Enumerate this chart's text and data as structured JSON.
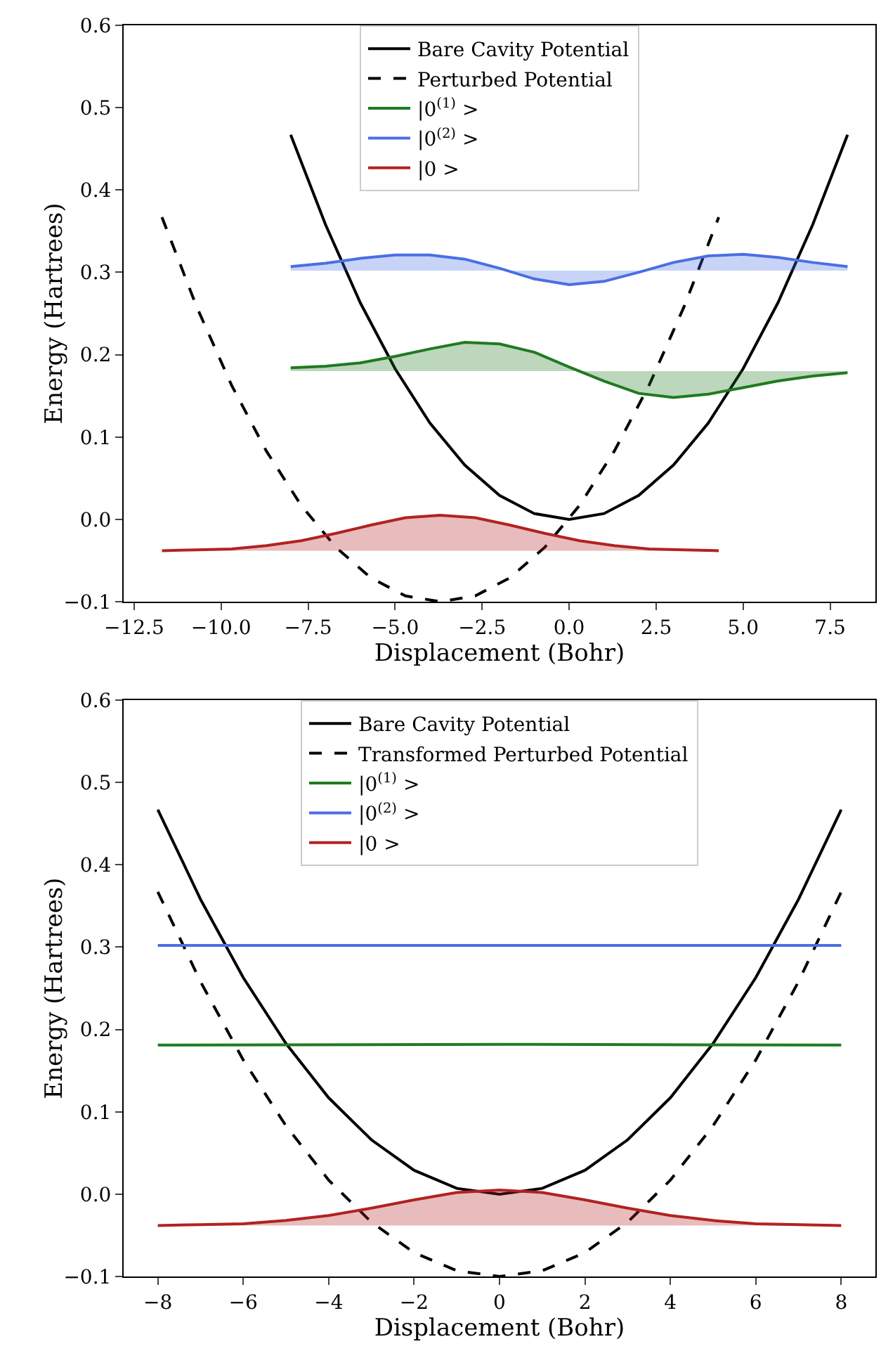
{
  "chart_data": [
    {
      "type": "line",
      "xlabel": "Displacement (Bohr)",
      "ylabel": "Energy (Hartrees)",
      "xlim": [
        -12.8,
        8.8
      ],
      "ylim": [
        -0.1,
        0.6
      ],
      "xticks": [
        {
          "value": -12.5,
          "label": "−12.5"
        },
        {
          "value": -10,
          "label": "−10.0"
        },
        {
          "value": -7.5,
          "label": "−7.5"
        },
        {
          "value": -5,
          "label": "−5.0"
        },
        {
          "value": -2.5,
          "label": "−2.5"
        },
        {
          "value": 0,
          "label": "0.0"
        },
        {
          "value": 2.5,
          "label": "2.5"
        },
        {
          "value": 5,
          "label": "5.0"
        },
        {
          "value": 7.5,
          "label": "7.5"
        }
      ],
      "yticks": [
        {
          "value": -0.1,
          "label": "−0.1"
        },
        {
          "value": 0,
          "label": "0.0"
        },
        {
          "value": 0.1,
          "label": "0.1"
        },
        {
          "value": 0.2,
          "label": "0.2"
        },
        {
          "value": 0.3,
          "label": "0.3"
        },
        {
          "value": 0.4,
          "label": "0.4"
        },
        {
          "value": 0.5,
          "label": "0.5"
        },
        {
          "value": 0.6,
          "label": "0.6"
        }
      ],
      "grid": false,
      "legend": "top",
      "marker": "none",
      "series": [
        {
          "name": "Bare Cavity Potential",
          "color": "#000000",
          "line_style": "solid",
          "x": [
            -8,
            -7,
            -6,
            -5,
            -4,
            -3,
            -2,
            -1,
            0,
            1,
            2,
            3,
            4,
            5,
            6,
            7,
            8
          ],
          "values": [
            0.467,
            0.358,
            0.263,
            0.183,
            0.117,
            0.066,
            0.029,
            0.007,
            0,
            0.007,
            0.029,
            0.066,
            0.117,
            0.183,
            0.263,
            0.358,
            0.467
          ]
        },
        {
          "name": "Perturbed Potential",
          "color": "#000000",
          "line_style": "dashed",
          "x": [
            -11.7,
            -10.7,
            -9.7,
            -8.7,
            -7.7,
            -6.7,
            -5.7,
            -4.7,
            -3.7,
            -2.7,
            -1.7,
            -0.7,
            0.3,
            1.3,
            2.3,
            3.3,
            4.3
          ],
          "values": [
            0.367,
            0.258,
            0.163,
            0.083,
            0.017,
            -0.034,
            -0.071,
            -0.093,
            -0.1,
            -0.093,
            -0.071,
            -0.034,
            0.017,
            0.083,
            0.163,
            0.258,
            0.367
          ]
        },
        {
          "name": "|0$^{(1)}$ >",
          "color": "#207a20",
          "line_style": "solid",
          "x": [
            -8,
            -7,
            -6,
            -5,
            -4,
            -3,
            -2,
            -1,
            0,
            1,
            2,
            3,
            4,
            5,
            6,
            7,
            8
          ],
          "values": [
            0.184,
            0.186,
            0.19,
            0.198,
            0.207,
            0.215,
            0.213,
            0.203,
            0.185,
            0.168,
            0.153,
            0.148,
            0.152,
            0.16,
            0.168,
            0.174,
            0.178
          ],
          "lower": [
            0.18,
            0.18,
            0.18,
            0.18,
            0.18,
            0.18,
            0.18,
            0.18,
            0.18,
            0.18,
            0.18,
            0.18,
            0.18,
            0.18,
            0.18,
            0.18,
            0.18
          ],
          "upper": [
            0.184,
            0.186,
            0.19,
            0.198,
            0.207,
            0.215,
            0.213,
            0.203,
            0.185,
            0.168,
            0.153,
            0.148,
            0.152,
            0.16,
            0.168,
            0.174,
            0.178
          ]
        },
        {
          "name": "|0$^{(2)}$ >",
          "color": "#4a6fe3",
          "line_style": "solid",
          "x": [
            -8,
            -7,
            -6,
            -5,
            -4,
            -3,
            -2,
            -1,
            0,
            1,
            2,
            3,
            4,
            5,
            6,
            7,
            8
          ],
          "values": [
            0.307,
            0.311,
            0.317,
            0.321,
            0.321,
            0.316,
            0.305,
            0.292,
            0.285,
            0.289,
            0.3,
            0.312,
            0.32,
            0.322,
            0.318,
            0.312,
            0.307
          ],
          "lower": [
            0.302,
            0.302,
            0.302,
            0.302,
            0.302,
            0.302,
            0.302,
            0.302,
            0.302,
            0.302,
            0.302,
            0.302,
            0.302,
            0.302,
            0.302,
            0.302,
            0.302
          ],
          "upper": [
            0.307,
            0.311,
            0.317,
            0.321,
            0.321,
            0.316,
            0.305,
            0.292,
            0.285,
            0.289,
            0.3,
            0.312,
            0.32,
            0.322,
            0.318,
            0.312,
            0.307
          ]
        },
        {
          "name": "|0 >",
          "color": "#b22222",
          "line_style": "solid",
          "x": [
            -11.7,
            -10.7,
            -9.7,
            -8.7,
            -7.7,
            -6.7,
            -5.7,
            -4.7,
            -3.7,
            -2.7,
            -1.7,
            -0.7,
            0.3,
            1.3,
            2.3,
            3.3,
            4.3
          ],
          "values": [
            -0.038,
            -0.037,
            -0.036,
            -0.032,
            -0.026,
            -0.017,
            -0.007,
            0.002,
            0.005,
            0.002,
            -0.007,
            -0.017,
            -0.026,
            -0.032,
            -0.036,
            -0.037,
            -0.038
          ],
          "lower": [
            -0.038,
            -0.038,
            -0.038,
            -0.038,
            -0.038,
            -0.038,
            -0.038,
            -0.038,
            -0.038,
            -0.038,
            -0.038,
            -0.038,
            -0.038,
            -0.038,
            -0.038,
            -0.038,
            -0.038
          ],
          "upper": [
            -0.038,
            -0.037,
            -0.036,
            -0.032,
            -0.026,
            -0.017,
            -0.007,
            0.002,
            0.005,
            0.002,
            -0.007,
            -0.017,
            -0.026,
            -0.032,
            -0.036,
            -0.037,
            -0.038
          ]
        }
      ]
    },
    {
      "type": "line",
      "xlabel": "Displacement (Bohr)",
      "ylabel": "Energy (Hartrees)",
      "xlim": [
        -8.8,
        8.8
      ],
      "ylim": [
        -0.1,
        0.6
      ],
      "xticks": [
        {
          "value": -8,
          "label": "−8"
        },
        {
          "value": -6,
          "label": "−6"
        },
        {
          "value": -4,
          "label": "−4"
        },
        {
          "value": -2,
          "label": "−2"
        },
        0,
        2,
        4,
        6,
        8
      ],
      "yticks": [
        {
          "value": -0.1,
          "label": "−0.1"
        },
        {
          "value": 0,
          "label": "0.0"
        },
        {
          "value": 0.1,
          "label": "0.1"
        },
        {
          "value": 0.2,
          "label": "0.2"
        },
        {
          "value": 0.3,
          "label": "0.3"
        },
        {
          "value": 0.4,
          "label": "0.4"
        },
        {
          "value": 0.5,
          "label": "0.5"
        },
        {
          "value": 0.6,
          "label": "0.6"
        }
      ],
      "grid": false,
      "legend": "top",
      "marker": "none",
      "series": [
        {
          "name": "Bare Cavity Potential",
          "color": "#000000",
          "line_style": "solid",
          "x": [
            -8,
            -7,
            -6,
            -5,
            -4,
            -3,
            -2,
            -1,
            0,
            1,
            2,
            3,
            4,
            5,
            6,
            7,
            8
          ],
          "values": [
            0.467,
            0.358,
            0.263,
            0.183,
            0.117,
            0.066,
            0.029,
            0.007,
            0,
            0.007,
            0.029,
            0.066,
            0.117,
            0.183,
            0.263,
            0.358,
            0.467
          ]
        },
        {
          "name": "Transformed Perturbed Potential",
          "color": "#000000",
          "line_style": "dashed",
          "x": [
            -8,
            -7,
            -6,
            -5,
            -4,
            -3,
            -2,
            -1,
            0,
            1,
            2,
            3,
            4,
            5,
            6,
            7,
            8
          ],
          "values": [
            0.367,
            0.258,
            0.163,
            0.083,
            0.017,
            -0.034,
            -0.071,
            -0.093,
            -0.1,
            -0.093,
            -0.071,
            -0.034,
            0.017,
            0.083,
            0.163,
            0.258,
            0.367
          ]
        },
        {
          "name": "|0$^{(1)}$ >",
          "color": "#207a20",
          "line_style": "solid",
          "x": [
            -8,
            0,
            8
          ],
          "values": [
            0.181,
            0.182,
            0.181
          ]
        },
        {
          "name": "|0$^{(2)}$ >",
          "color": "#4a6fe3",
          "line_style": "solid",
          "x": [
            -8,
            0,
            8
          ],
          "values": [
            0.302,
            0.302,
            0.302
          ]
        },
        {
          "name": "|0 >",
          "color": "#b22222",
          "line_style": "solid",
          "x": [
            -8,
            -7,
            -6,
            -5,
            -4,
            -3,
            -2,
            -1,
            0,
            1,
            2,
            3,
            4,
            5,
            6,
            7,
            8
          ],
          "values": [
            -0.038,
            -0.037,
            -0.036,
            -0.032,
            -0.026,
            -0.017,
            -0.007,
            0.002,
            0.005,
            0.002,
            -0.007,
            -0.017,
            -0.026,
            -0.032,
            -0.036,
            -0.037,
            -0.038
          ],
          "lower": [
            -0.038,
            -0.038,
            -0.038,
            -0.038,
            -0.038,
            -0.038,
            -0.038,
            -0.038,
            -0.038,
            -0.038,
            -0.038,
            -0.038,
            -0.038,
            -0.038,
            -0.038,
            -0.038,
            -0.038
          ],
          "upper": [
            -0.038,
            -0.037,
            -0.036,
            -0.032,
            -0.026,
            -0.017,
            -0.007,
            0.002,
            0.005,
            0.002,
            -0.007,
            -0.017,
            -0.026,
            -0.032,
            -0.036,
            -0.037,
            -0.038
          ]
        }
      ]
    }
  ]
}
